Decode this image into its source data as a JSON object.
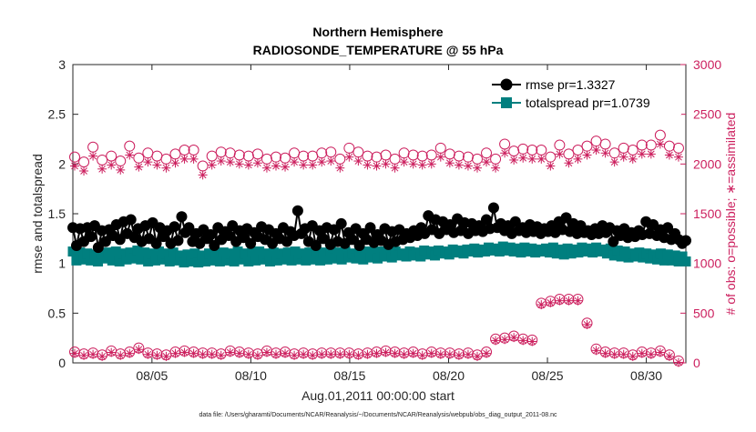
{
  "chart_data": {
    "type": "line",
    "title_line1": "Northern Hemisphere",
    "title_line2": "RADIOSONDE_TEMPERATURE @ 55 hPa",
    "xlabel": "Aug.01,2011 00:00:00 start",
    "ylabel_left": "rmse and totalspread",
    "ylabel_right": "# of obs: o=possible; ∗=assimilated",
    "footer": "data file: /Users/gharamti/Documents/NCAR/Reanalysis/~/Documents/NCAR/Reanalysis/webpub/obs_diag_output_2011-08.nc",
    "x_ticks": [
      {
        "day": 5,
        "label": "08/05"
      },
      {
        "day": 10,
        "label": "08/10"
      },
      {
        "day": 15,
        "label": "08/15"
      },
      {
        "day": 20,
        "label": "08/20"
      },
      {
        "day": 25,
        "label": "08/25"
      },
      {
        "day": 30,
        "label": "08/30"
      }
    ],
    "xlim_days": [
      1,
      32
    ],
    "ylim_left": [
      0,
      3
    ],
    "ylim_right": [
      0,
      3000
    ],
    "left_ticks": [
      "0",
      "0.5",
      "1",
      "1.5",
      "2",
      "2.5",
      "3"
    ],
    "right_ticks": [
      "0",
      "500",
      "1000",
      "1500",
      "2000",
      "2500",
      "3000"
    ],
    "series": [
      {
        "name": "rmse pr=1.3327",
        "color": "#000000",
        "marker": "circle",
        "values": [
          1.36,
          1.18,
          1.35,
          1.22,
          1.36,
          1.27,
          1.38,
          1.16,
          1.33,
          1.22,
          1.34,
          1.28,
          1.39,
          1.24,
          1.42,
          1.3,
          1.44,
          1.26,
          1.35,
          1.22,
          1.38,
          1.25,
          1.41,
          1.2,
          1.36,
          1.27,
          1.33,
          1.2,
          1.37,
          1.23,
          1.47,
          1.31,
          1.36,
          1.22,
          1.3,
          1.2,
          1.34,
          1.25,
          1.29,
          1.18,
          1.36,
          1.24,
          1.32,
          1.28,
          1.38,
          1.22,
          1.33,
          1.26,
          1.35,
          1.2,
          1.31,
          1.27,
          1.37,
          1.24,
          1.34,
          1.2,
          1.3,
          1.25,
          1.36,
          1.22,
          1.32,
          1.28,
          1.53,
          1.3,
          1.35,
          1.22,
          1.38,
          1.18,
          1.33,
          1.25,
          1.36,
          1.19,
          1.34,
          1.22,
          1.4,
          1.2,
          1.31,
          1.24,
          1.35,
          1.18,
          1.3,
          1.24,
          1.36,
          1.21,
          1.29,
          1.23,
          1.35,
          1.19,
          1.32,
          1.22,
          1.34,
          1.24,
          1.3,
          1.26,
          1.33,
          1.28,
          1.36,
          1.3,
          1.48,
          1.34,
          1.44,
          1.3,
          1.42,
          1.34,
          1.39,
          1.31,
          1.45,
          1.33,
          1.41,
          1.3,
          1.4,
          1.33,
          1.38,
          1.32,
          1.44,
          1.35,
          1.56,
          1.36,
          1.4,
          1.33,
          1.38,
          1.3,
          1.42,
          1.33,
          1.36,
          1.31,
          1.39,
          1.32,
          1.37,
          1.3,
          1.35,
          1.32,
          1.38,
          1.31,
          1.42,
          1.34,
          1.46,
          1.32,
          1.4,
          1.3,
          1.38,
          1.31,
          1.33,
          1.29,
          1.35,
          1.3,
          1.38,
          1.31,
          1.36,
          1.22,
          1.33,
          1.28,
          1.35,
          1.26,
          1.31,
          1.27,
          1.33,
          1.29,
          1.42,
          1.3,
          1.39,
          1.28,
          1.34,
          1.26,
          1.36,
          1.24,
          1.3,
          1.24,
          1.2,
          1.23
        ]
      },
      {
        "name": "totalspread pr=1.0739",
        "color": "#007f7f",
        "marker": "square",
        "values": [
          1.12,
          1.03,
          1.11,
          1.04,
          1.1,
          1.03,
          1.09,
          1.02,
          1.1,
          1.05,
          1.11,
          1.03,
          1.12,
          1.02,
          1.1,
          1.04,
          1.11,
          1.05,
          1.13,
          1.04,
          1.11,
          1.02,
          1.1,
          1.03,
          1.12,
          1.04,
          1.1,
          1.02,
          1.11,
          1.03,
          1.08,
          1.01,
          1.09,
          1.02,
          1.1,
          1.01,
          1.08,
          1.02,
          1.1,
          1.03,
          1.09,
          1.02,
          1.11,
          1.03,
          1.1,
          1.02,
          1.12,
          1.04,
          1.1,
          1.02,
          1.11,
          1.03,
          1.12,
          1.04,
          1.1,
          1.02,
          1.11,
          1.03,
          1.1,
          1.04,
          1.11,
          1.03,
          1.12,
          1.04,
          1.1,
          1.03,
          1.11,
          1.04,
          1.12,
          1.03,
          1.11,
          1.04,
          1.12,
          1.05,
          1.11,
          1.04,
          1.12,
          1.06,
          1.1,
          1.05,
          1.11,
          1.04,
          1.12,
          1.06,
          1.11,
          1.05,
          1.12,
          1.07,
          1.11,
          1.06,
          1.12,
          1.08,
          1.1,
          1.07,
          1.12,
          1.08,
          1.11,
          1.07,
          1.13,
          1.09,
          1.12,
          1.08,
          1.13,
          1.1,
          1.12,
          1.09,
          1.14,
          1.11,
          1.13,
          1.1,
          1.14,
          1.12,
          1.15,
          1.11,
          1.14,
          1.12,
          1.16,
          1.13,
          1.15,
          1.12,
          1.17,
          1.13,
          1.16,
          1.12,
          1.15,
          1.11,
          1.16,
          1.12,
          1.15,
          1.11,
          1.14,
          1.12,
          1.15,
          1.11,
          1.16,
          1.1,
          1.14,
          1.09,
          1.15,
          1.1,
          1.14,
          1.11,
          1.16,
          1.12,
          1.15,
          1.11,
          1.16,
          1.12,
          1.14,
          1.1,
          1.15,
          1.08,
          1.13,
          1.07,
          1.12,
          1.06,
          1.1,
          1.07,
          1.11,
          1.06,
          1.1,
          1.05,
          1.09,
          1.04,
          1.1,
          1.03,
          1.09,
          1.03,
          1.08,
          1.02,
          1.07,
          1.02
        ]
      },
      {
        "name": "possible",
        "color": "#cc1f5e",
        "marker": "open-circle",
        "axis": "right",
        "obs_by_day": [
          [
            2070,
            110
          ],
          [
            2020,
            90
          ],
          [
            2170,
            100
          ],
          [
            2040,
            80
          ],
          [
            2080,
            120
          ],
          [
            2030,
            90
          ],
          [
            2180,
            110
          ],
          [
            2060,
            150
          ],
          [
            2110,
            100
          ],
          [
            2080,
            90
          ],
          [
            2050,
            80
          ],
          [
            2100,
            110
          ],
          [
            2140,
            120
          ],
          [
            2140,
            110
          ],
          [
            1980,
            100
          ],
          [
            2080,
            100
          ],
          [
            2120,
            90
          ],
          [
            2110,
            120
          ],
          [
            2090,
            110
          ],
          [
            2080,
            100
          ],
          [
            2100,
            90
          ],
          [
            2050,
            120
          ],
          [
            2070,
            100
          ],
          [
            2060,
            110
          ],
          [
            2110,
            90
          ],
          [
            2080,
            100
          ],
          [
            2080,
            90
          ],
          [
            2110,
            100
          ],
          [
            2120,
            100
          ],
          [
            2050,
            100
          ],
          [
            2160,
            100
          ],
          [
            2120,
            90
          ],
          [
            2080,
            100
          ],
          [
            2070,
            110
          ],
          [
            2090,
            120
          ],
          [
            2050,
            110
          ],
          [
            2110,
            100
          ],
          [
            2090,
            110
          ],
          [
            2080,
            90
          ],
          [
            2090,
            110
          ],
          [
            2160,
            100
          ],
          [
            2100,
            100
          ],
          [
            2080,
            90
          ],
          [
            2070,
            100
          ],
          [
            2050,
            80
          ],
          [
            2110,
            110
          ],
          [
            2050,
            240
          ],
          [
            2200,
            250
          ],
          [
            2130,
            270
          ],
          [
            2150,
            240
          ],
          [
            2140,
            230
          ],
          [
            2140,
            600
          ],
          [
            2070,
            620
          ],
          [
            2190,
            640
          ],
          [
            2100,
            640
          ],
          [
            2140,
            640
          ],
          [
            2180,
            400
          ],
          [
            2230,
            140
          ],
          [
            2200,
            110
          ],
          [
            2110,
            100
          ],
          [
            2160,
            100
          ],
          [
            2140,
            80
          ],
          [
            2190,
            110
          ],
          [
            2190,
            100
          ],
          [
            2290,
            120
          ],
          [
            2180,
            80
          ],
          [
            2160,
            20
          ]
        ]
      },
      {
        "name": "assimilated",
        "color": "#cc1f5e",
        "marker": "asterisk",
        "axis": "right"
      }
    ],
    "legend": [
      {
        "label": "rmse pr=1.3327",
        "color": "#000000",
        "marker": "circle"
      },
      {
        "label": "totalspread pr=1.0739",
        "color": "#007f7f",
        "marker": "square"
      }
    ]
  }
}
